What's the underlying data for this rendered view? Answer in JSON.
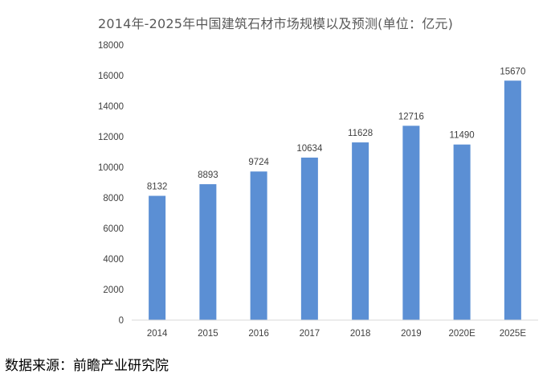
{
  "chart_data": {
    "type": "bar",
    "title": "2014年-2025年中国建筑石材市场规模以及预测(单位：亿元)",
    "categories": [
      "2014",
      "2015",
      "2016",
      "2017",
      "2018",
      "2019",
      "2020E",
      "2025E"
    ],
    "values": [
      8132,
      8893,
      9724,
      10634,
      11628,
      12716,
      11490,
      15670
    ],
    "data_labels": [
      "8132",
      "8893",
      "9724",
      "10634",
      "11628",
      "12716",
      "11490",
      "15670"
    ],
    "y_ticks": [
      "0",
      "2000",
      "4000",
      "6000",
      "8000",
      "10000",
      "12000",
      "14000",
      "16000",
      "18000"
    ],
    "ylim": [
      0,
      18000
    ],
    "xlabel": "",
    "ylabel": "",
    "grid": false,
    "legend": "none",
    "bar_color": "#5B8FD4",
    "text_color": "#404040"
  },
  "source": "数据来源：前瞻产业研究院"
}
